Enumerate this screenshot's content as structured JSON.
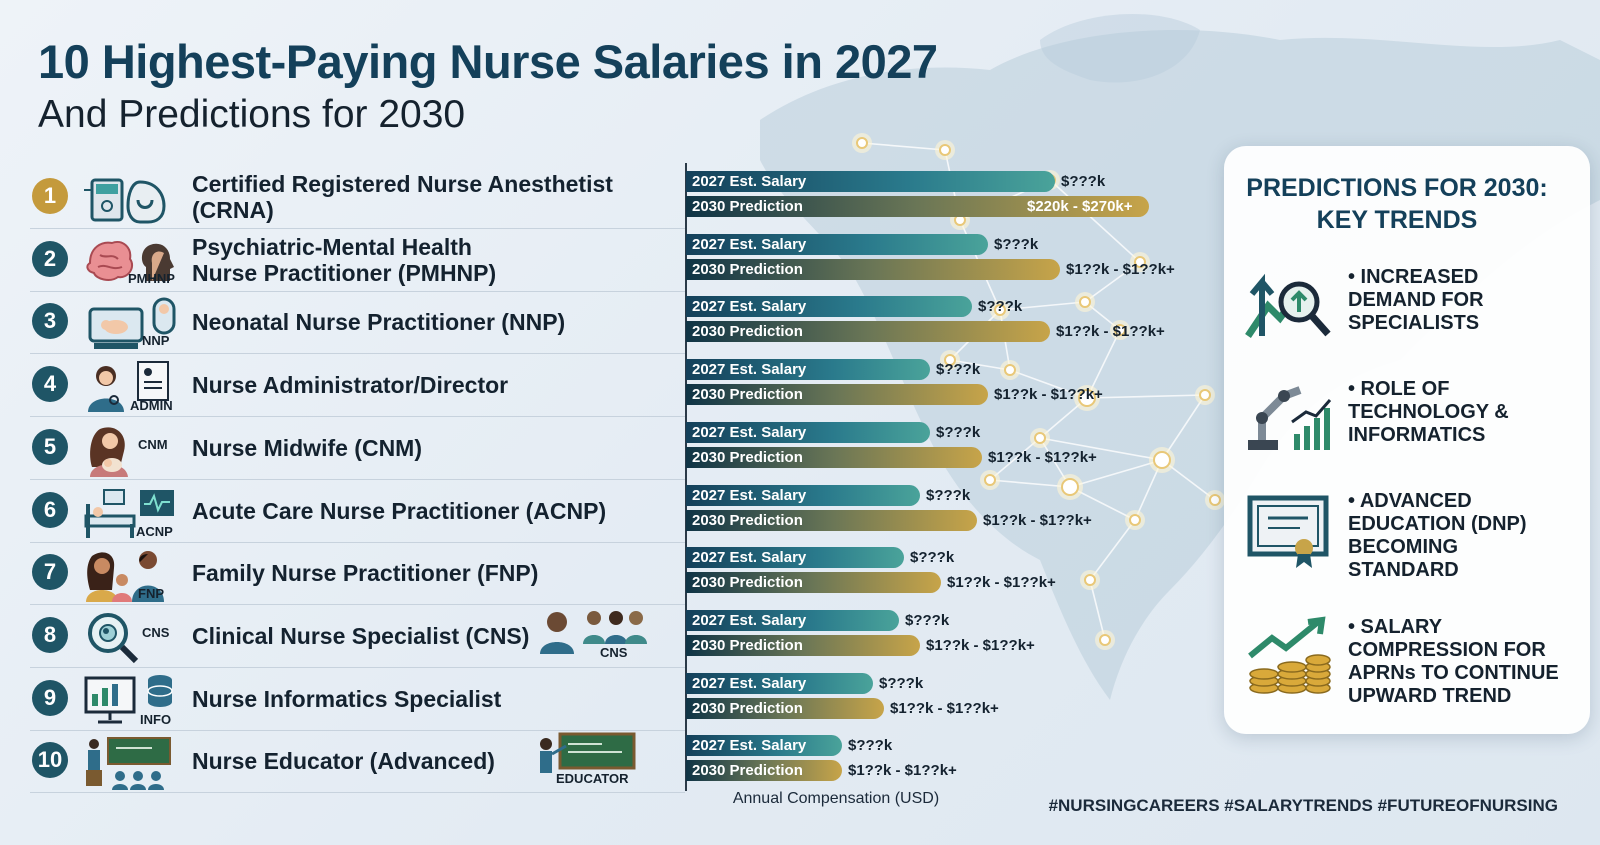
{
  "header": {
    "title": "10 Highest-Paying Nurse Salaries in 2027",
    "subtitle": "And Predictions for 2030"
  },
  "colors": {
    "salary_bar": "#1f6b7a",
    "prediction_bar": "#c7a449",
    "rank_badge": "#1f5566",
    "rank_badge_first": "#c49a3c",
    "title": "#14405a"
  },
  "roles": [
    {
      "rank": "1",
      "name": "Certified Registered Nurse Anesthetist (CRNA)",
      "icon": "anesthesia-machine-icon",
      "tag": ""
    },
    {
      "rank": "2",
      "name": "Psychiatric-Mental Health\nNurse Practitioner (PMHNP)",
      "icon": "brain-head-icon",
      "tag": "PMHNP"
    },
    {
      "rank": "3",
      "name": "Neonatal Nurse Practitioner (NNP)",
      "icon": "incubator-baby-icon",
      "tag": "NNP"
    },
    {
      "rank": "4",
      "name": "Nurse Administrator/Director",
      "icon": "nurse-document-icon",
      "tag": "ADMIN"
    },
    {
      "rank": "5",
      "name": "Nurse Midwife (CNM)",
      "icon": "mother-baby-icon",
      "tag": "CNM"
    },
    {
      "rank": "6",
      "name": "Acute Care Nurse Practitioner (ACNP)",
      "icon": "hospital-bed-monitor-icon",
      "tag": "ACNP"
    },
    {
      "rank": "7",
      "name": "Family Nurse Practitioner (FNP)",
      "icon": "family-icon",
      "tag": "FNP"
    },
    {
      "rank": "8",
      "name": "Clinical Nurse Specialist (CNS)",
      "icon": "magnifier-cell-icon",
      "tag": "CNS"
    },
    {
      "rank": "9",
      "name": "Nurse Informatics Specialist",
      "icon": "computer-database-icon",
      "tag": "INFO"
    },
    {
      "rank": "10",
      "name": "Nurse Educator (Advanced)",
      "icon": "teacher-class-icon",
      "tag": ""
    }
  ],
  "extra_icons": [
    {
      "icon": "nurse-team-icon",
      "tag": "CNS"
    },
    {
      "icon": "teacher-board-icon",
      "tag": "EDUCATOR"
    }
  ],
  "chart_data": {
    "type": "bar",
    "orientation": "horizontal",
    "categories": [
      "CRNA",
      "PMHNP",
      "NNP",
      "Nurse Administrator/Director",
      "Nurse Midwife (CNM)",
      "ACNP",
      "FNP",
      "CNS",
      "Nurse Informatics Specialist",
      "Nurse Educator (Advanced)"
    ],
    "series": [
      {
        "name": "2027 Est. Salary",
        "bar_fraction": [
          0.71,
          0.58,
          0.55,
          0.47,
          0.47,
          0.45,
          0.42,
          0.41,
          0.36,
          0.3
        ],
        "labels": [
          "$???k",
          "$???k",
          "$???k",
          "$???k",
          "$???k",
          "$???k",
          "$???k",
          "$???k",
          "$???k",
          "$???k"
        ]
      },
      {
        "name": "2030 Prediction",
        "bar_fraction": [
          0.89,
          0.72,
          0.7,
          0.58,
          0.57,
          0.56,
          0.49,
          0.45,
          0.38,
          0.3
        ],
        "labels": [
          "$220k - $270k+",
          "$1??k - $1??k+",
          "$1??k - $1??k+",
          "$1??k - $1??k+",
          "$1??k - $1??k+",
          "$1??k - $1??k+",
          "$1??k - $1??k+",
          "$1??k - $1??k+",
          "$1??k - $1??k+",
          "$1??k - $1??k+"
        ]
      }
    ],
    "xlabel": "Annual Compensation (USD)",
    "grid": false,
    "legend": "inside-bars"
  },
  "panel": {
    "title": "PREDICTIONS FOR 2030:\nKEY TRENDS",
    "trends": [
      {
        "text": "• INCREASED\nDEMAND FOR\nSPECIALISTS",
        "icon": "growth-magnifier-icon"
      },
      {
        "text": "• ROLE OF\nTECHNOLOGY &\nINFORMATICS",
        "icon": "robot-arm-chart-icon"
      },
      {
        "text": "• ADVANCED\nEDUCATION (DNP)\nBECOMING\nSTANDARD",
        "icon": "diploma-certificate-icon"
      },
      {
        "text": "• SALARY\nCOMPRESSION FOR\nAPRNs TO CONTINUE\nUPWARD TREND",
        "icon": "coins-growth-icon"
      }
    ]
  },
  "footer": {
    "hashtags": "#NURSINGCAREERS #SALARYTRENDS #FUTUREOFNURSING"
  }
}
